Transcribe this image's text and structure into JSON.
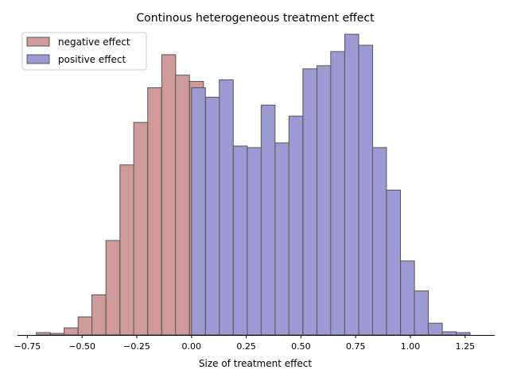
{
  "chart_data": {
    "type": "bar",
    "title": "Continous heterogeneous treatment effect",
    "xlabel": "Size of treatment effect",
    "ylabel": "",
    "xlim": [
      -0.795,
      1.385
    ],
    "ylim": [
      0,
      185
    ],
    "bin_width": 0.0636,
    "grid": false,
    "legend": "top-left",
    "colors": {
      "negative": "#cf9a9a",
      "positive": "#9c9ad3",
      "edge": "#555555"
    },
    "x_ticks": [
      -0.75,
      -0.5,
      -0.25,
      0.0,
      0.25,
      0.5,
      0.75,
      1.0,
      1.25
    ],
    "x_tick_labels": [
      "−0.75",
      "−0.50",
      "−0.25",
      "0.00",
      "0.25",
      "0.50",
      "0.75",
      "1.00",
      "1.25"
    ],
    "series": [
      {
        "name": "negative effect",
        "color": "#cf9a9a",
        "bins": [
          [
            -0.709,
            1.5
          ],
          [
            -0.645,
            1
          ],
          [
            -0.582,
            4.5
          ],
          [
            -0.518,
            11.5
          ],
          [
            -0.455,
            25.5
          ],
          [
            -0.391,
            60
          ],
          [
            -0.327,
            108
          ],
          [
            -0.264,
            135
          ],
          [
            -0.2,
            157
          ],
          [
            -0.136,
            178
          ],
          [
            -0.073,
            165
          ],
          [
            -0.009,
            161
          ]
        ]
      },
      {
        "name": "positive effect",
        "color": "#9c9ad3",
        "bins": [
          [
            0.0,
            157
          ],
          [
            0.064,
            151
          ],
          [
            0.127,
            162
          ],
          [
            0.191,
            120
          ],
          [
            0.255,
            119
          ],
          [
            0.318,
            146
          ],
          [
            0.382,
            122
          ],
          [
            0.445,
            139
          ],
          [
            0.509,
            169
          ],
          [
            0.573,
            171
          ],
          [
            0.636,
            180
          ],
          [
            0.7,
            191
          ],
          [
            0.764,
            184
          ],
          [
            0.827,
            119
          ],
          [
            0.891,
            92
          ],
          [
            0.955,
            47
          ],
          [
            1.018,
            28
          ],
          [
            1.082,
            7.5
          ],
          [
            1.146,
            2
          ],
          [
            1.209,
            1.5
          ]
        ]
      }
    ]
  }
}
